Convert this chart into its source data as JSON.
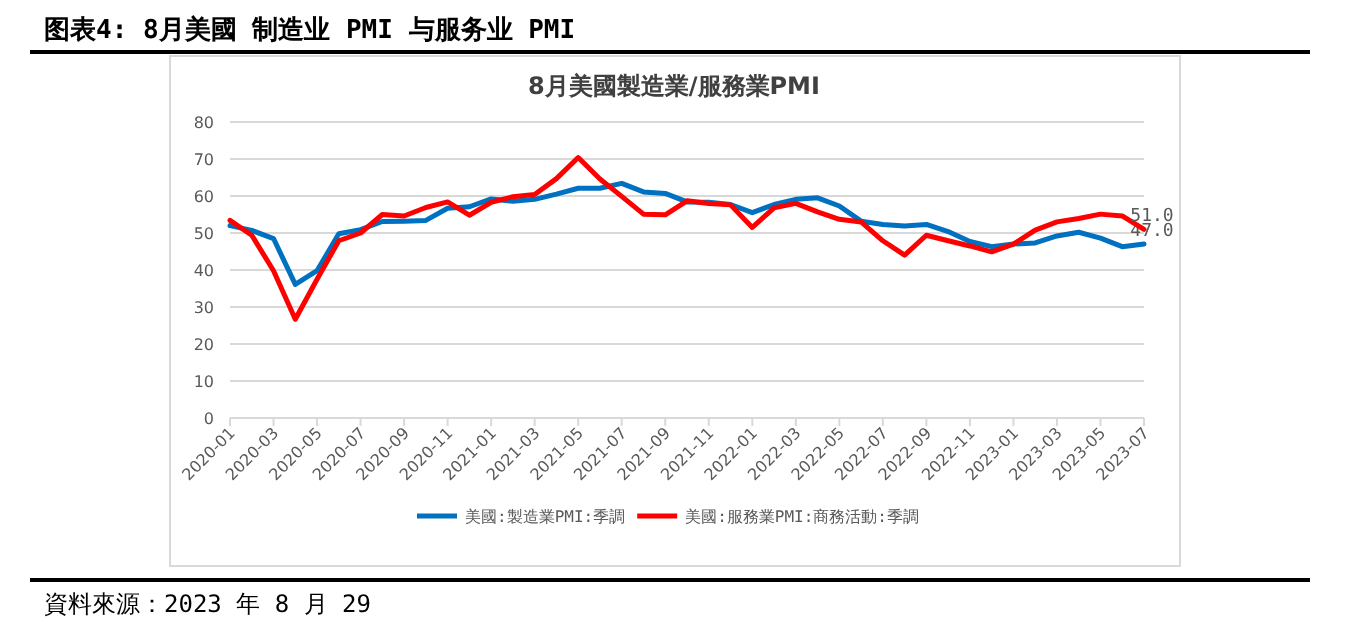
{
  "chart_data": {
    "type": "line",
    "title": "图表4:  8月美國 制造业 PMI 与服务业 PMI",
    "subtitle": "8月美國製造業/服務業PMI",
    "categories": [
      "2020-01",
      null,
      "2020-03",
      null,
      "2020-05",
      null,
      "2020-07",
      null,
      "2020-09",
      null,
      "2020-11",
      null,
      "2021-01",
      null,
      "2021-03",
      null,
      "2021-05",
      null,
      "2021-07",
      null,
      "2021-09",
      null,
      "2021-11",
      null,
      "2022-01",
      null,
      "2022-03",
      null,
      "2022-05",
      null,
      "2022-07",
      null,
      "2022-09",
      null,
      "2022-11",
      null,
      "2023-01",
      null,
      "2023-03",
      null,
      "2023-05",
      null,
      "2023-07"
    ],
    "series": [
      {
        "name": "美國:製造業PMI:季調",
        "color": "#0070c0",
        "values": [
          52,
          50.7,
          48.5,
          36.1,
          39.8,
          49.8,
          50.9,
          53.1,
          53.2,
          53.4,
          56.7,
          57.1,
          59.2,
          58.6,
          59.1,
          60.5,
          62.1,
          62.1,
          63.4,
          61.1,
          60.7,
          58.4,
          58.3,
          57.7,
          55.5,
          57.7,
          59.1,
          59.5,
          57.3,
          53.2,
          52.3,
          51.9,
          52.3,
          50.4,
          47.7,
          46.3,
          47,
          47.3,
          49.2,
          50.2,
          48.6,
          46.3,
          47.0
        ],
        "value_labels": [
          null,
          null,
          null,
          null,
          null,
          null,
          null,
          null,
          null,
          null,
          null,
          null,
          null,
          null,
          null,
          null,
          null,
          null,
          null,
          null,
          null,
          null,
          null,
          null,
          null,
          null,
          null,
          null,
          null,
          null,
          null,
          null,
          null,
          null,
          null,
          null,
          null,
          null,
          null,
          null,
          null,
          null,
          "47.0"
        ]
      },
      {
        "name": "美國:服務業PMI:商務活動:季調",
        "color": "#ff0000",
        "values": [
          53.4,
          49.4,
          39.8,
          26.7,
          37.5,
          47.9,
          50,
          55,
          54.6,
          56.9,
          58.4,
          54.8,
          58.3,
          59.8,
          60.4,
          64.7,
          70.4,
          64.6,
          59.9,
          55.1,
          54.9,
          58.7,
          58,
          57.6,
          51.5,
          56.8,
          58,
          55.7,
          53.7,
          53,
          47.9,
          44,
          49.4,
          47.9,
          46.5,
          44.9,
          47,
          50.8,
          53,
          53.9,
          55.1,
          54.6,
          51.0
        ],
        "value_labels": [
          null,
          null,
          null,
          null,
          null,
          null,
          null,
          null,
          null,
          null,
          null,
          null,
          null,
          null,
          null,
          null,
          null,
          null,
          null,
          null,
          null,
          null,
          null,
          null,
          null,
          null,
          null,
          null,
          null,
          null,
          null,
          null,
          null,
          null,
          null,
          null,
          null,
          null,
          null,
          null,
          null,
          null,
          "51.0"
        ]
      }
    ],
    "ylim": [
      0,
      80
    ],
    "yticks": [
      0,
      10,
      20,
      30,
      40,
      50,
      60,
      70,
      80
    ],
    "grid": "y",
    "legend": "bottom",
    "marker": "none",
    "line_style": "solid",
    "annotations": [
      "資料來源：2023 年 8 月 29"
    ]
  }
}
